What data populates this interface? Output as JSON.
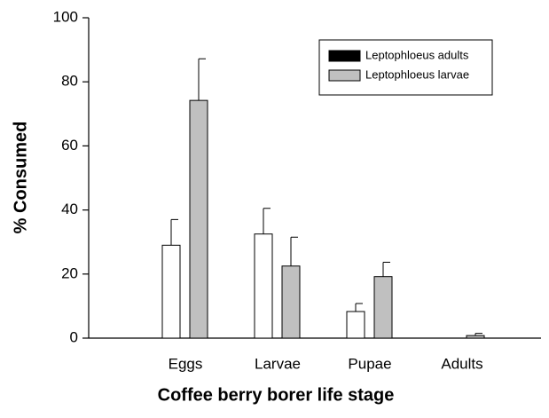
{
  "chart_data": {
    "type": "bar",
    "xlabel": "Coffee berry borer life stage",
    "ylabel": "% Consumed",
    "categories": [
      "Eggs",
      "Larvae",
      "Pupae",
      "Adults"
    ],
    "series": [
      {
        "name": "Leptophloeus adults",
        "color": "#ffffff",
        "legend_color": "#000000",
        "values": [
          29,
          32.5,
          8.3,
          0
        ],
        "errors": [
          8,
          8,
          2.5,
          0
        ]
      },
      {
        "name": "Leptophloeus larvae",
        "color": "#c0c0c0",
        "legend_color": "#c0c0c0",
        "values": [
          74.2,
          22.5,
          19.2,
          0.8
        ],
        "errors": [
          13,
          9,
          4.5,
          0.7
        ]
      }
    ],
    "ylim": [
      0,
      100
    ],
    "yticks": [
      0,
      20,
      40,
      60,
      80,
      100
    ],
    "legend": "upper right"
  }
}
